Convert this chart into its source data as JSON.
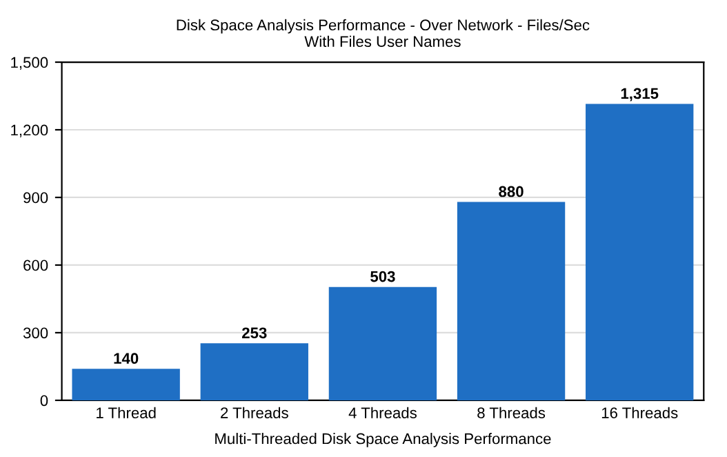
{
  "chart_data": {
    "type": "bar",
    "title": "Disk Space Analysis Performance - Over Network - Files/Sec\nWith Files User Names",
    "xlabel": "Multi-Threaded Disk Space Analysis Performance",
    "categories": [
      "1 Thread",
      "2 Threads",
      "4 Threads",
      "8 Threads",
      "16 Threads"
    ],
    "values": [
      140,
      253,
      503,
      880,
      1315
    ],
    "value_labels": [
      "140",
      "253",
      "503",
      "880",
      "1,315"
    ],
    "color": "#1f6fc4",
    "ylim": [
      0,
      1500
    ],
    "yticks": [
      0,
      300,
      600,
      900,
      {
        "value": 1200,
        "label": "1,200"
      },
      {
        "value": 1500,
        "label": "1,500"
      }
    ],
    "grid": "y"
  }
}
